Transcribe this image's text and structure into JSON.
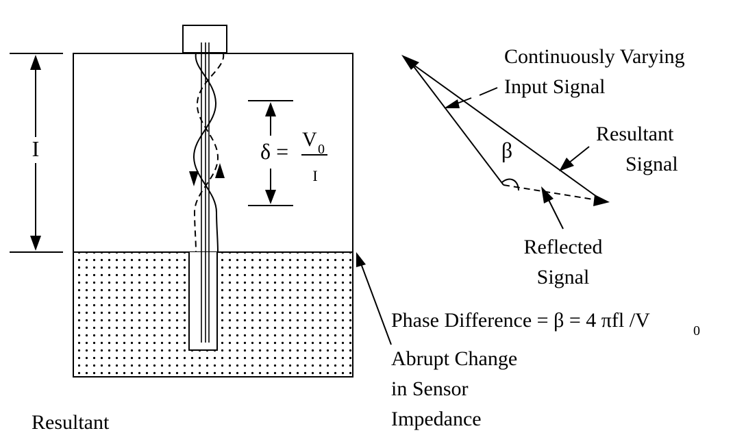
{
  "labels": {
    "height_symbol": "I",
    "delta_lhs": "δ =",
    "delta_num": "V",
    "delta_num_sub": "0",
    "delta_den": "I",
    "input_line1": "Continuously Varying",
    "input_line2": "Input Signal",
    "beta": "β",
    "resultant_line1": "Resultant",
    "resultant_line2": "Signal",
    "reflected_line1": "Reflected",
    "reflected_line2": "Signal",
    "phase_text": "Phase Difference = β = 4 πfl /V",
    "phase_sub": "0",
    "abrupt_line1": "Abrupt Change",
    "abrupt_line2": "in Sensor",
    "abrupt_line3": "Impedance",
    "bottom_left": "Resultant"
  }
}
